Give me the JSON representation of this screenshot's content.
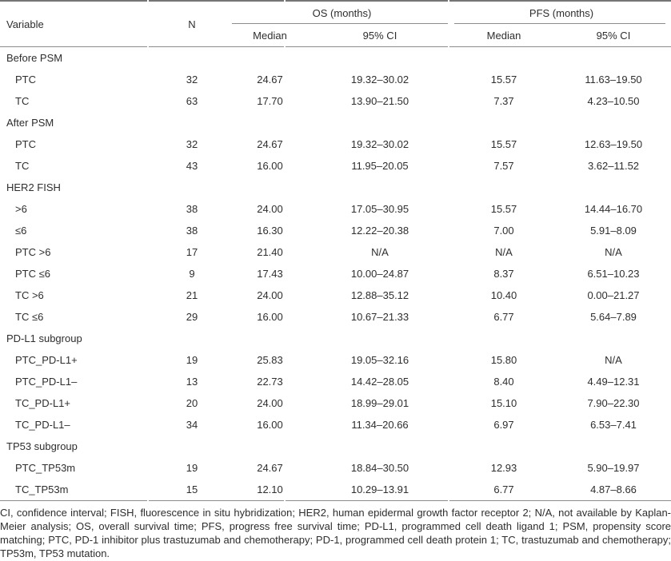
{
  "colors": {
    "text": "#2e2e2e",
    "rule_dark": "#757575",
    "rule_light": "#8c8c8c",
    "background": "#ffffff"
  },
  "table": {
    "header": {
      "variable": "Variable",
      "n": "N",
      "os_group": "OS (months)",
      "pfs_group": "PFS (months)",
      "os_median": "Median",
      "os_ci": "95% CI",
      "pfs_median": "Median",
      "pfs_ci": "95% CI"
    },
    "rows": [
      {
        "type": "section",
        "label": "Before PSM"
      },
      {
        "type": "data",
        "label": "PTC",
        "n": "32",
        "os_median": "24.67",
        "os_ci": "19.32–30.02",
        "pfs_median": "15.57",
        "pfs_ci": "11.63–19.50"
      },
      {
        "type": "data",
        "label": "TC",
        "n": "63",
        "os_median": "17.70",
        "os_ci": "13.90–21.50",
        "pfs_median": "7.37",
        "pfs_ci": "4.23–10.50"
      },
      {
        "type": "section",
        "label": "After PSM"
      },
      {
        "type": "data",
        "label": "PTC",
        "n": "32",
        "os_median": "24.67",
        "os_ci": "19.32–30.02",
        "pfs_median": "15.57",
        "pfs_ci": "12.63–19.50"
      },
      {
        "type": "data",
        "label": "TC",
        "n": "43",
        "os_median": "16.00",
        "os_ci": "11.95–20.05",
        "pfs_median": "7.57",
        "pfs_ci": "3.62–11.52"
      },
      {
        "type": "section",
        "label": "HER2 FISH"
      },
      {
        "type": "data",
        "label": ">6",
        "n": "38",
        "os_median": "24.00",
        "os_ci": "17.05–30.95",
        "pfs_median": "15.57",
        "pfs_ci": "14.44–16.70"
      },
      {
        "type": "data",
        "label": "≤6",
        "n": "38",
        "os_median": "16.30",
        "os_ci": "12.22–20.38",
        "pfs_median": "7.00",
        "pfs_ci": "5.91–8.09"
      },
      {
        "type": "data",
        "label": "PTC >6",
        "n": "17",
        "os_median": "21.40",
        "os_ci": "N/A",
        "pfs_median": "N/A",
        "pfs_ci": "N/A"
      },
      {
        "type": "data",
        "label": "PTC ≤6",
        "n": "9",
        "os_median": "17.43",
        "os_ci": "10.00–24.87",
        "pfs_median": "8.37",
        "pfs_ci": "6.51–10.23"
      },
      {
        "type": "data",
        "label": "TC >6",
        "n": "21",
        "os_median": "24.00",
        "os_ci": "12.88–35.12",
        "pfs_median": "10.40",
        "pfs_ci": "0.00–21.27"
      },
      {
        "type": "data",
        "label": "TC ≤6",
        "n": "29",
        "os_median": "16.00",
        "os_ci": "10.67–21.33",
        "pfs_median": "6.77",
        "pfs_ci": "5.64–7.89"
      },
      {
        "type": "section",
        "label": "PD-L1 subgroup"
      },
      {
        "type": "data",
        "label": "PTC_PD-L1+",
        "n": "19",
        "os_median": "25.83",
        "os_ci": "19.05–32.16",
        "pfs_median": "15.80",
        "pfs_ci": "N/A"
      },
      {
        "type": "data",
        "label": "PTC_PD-L1–",
        "n": "13",
        "os_median": "22.73",
        "os_ci": "14.42–28.05",
        "pfs_median": "8.40",
        "pfs_ci": "4.49–12.31"
      },
      {
        "type": "data",
        "label": "TC_PD-L1+",
        "n": "20",
        "os_median": "24.00",
        "os_ci": "18.99–29.01",
        "pfs_median": "15.10",
        "pfs_ci": "7.90–22.30"
      },
      {
        "type": "data",
        "label": "TC_PD-L1–",
        "n": "34",
        "os_median": "16.00",
        "os_ci": "11.34–20.66",
        "pfs_median": "6.97",
        "pfs_ci": "6.53–7.41"
      },
      {
        "type": "section",
        "label": "TP53 subgroup"
      },
      {
        "type": "data",
        "label": "PTC_TP53m",
        "n": "19",
        "os_median": "24.67",
        "os_ci": "18.84–30.50",
        "pfs_median": "12.93",
        "pfs_ci": "5.90–19.97"
      },
      {
        "type": "data",
        "label": "TC_TP53m",
        "n": "15",
        "os_median": "12.10",
        "os_ci": "10.29–13.91",
        "pfs_median": "6.77",
        "pfs_ci": "4.87–8.66"
      }
    ],
    "footnote": "CI, confidence interval; FISH, fluorescence in situ hybridization; HER2, human epidermal growth factor receptor 2; N/A, not available by Kaplan-Meier analysis; OS, overall survival time; PFS, progress free survival time; PD-L1, programmed cell death ligand 1; PSM, propensity score matching; PTC, PD-1 inhibitor plus trastuzumab and chemotherapy; PD-1, programmed cell death protein 1; TC, trastuzumab and chemotherapy; TP53m, TP53 mutation."
  }
}
